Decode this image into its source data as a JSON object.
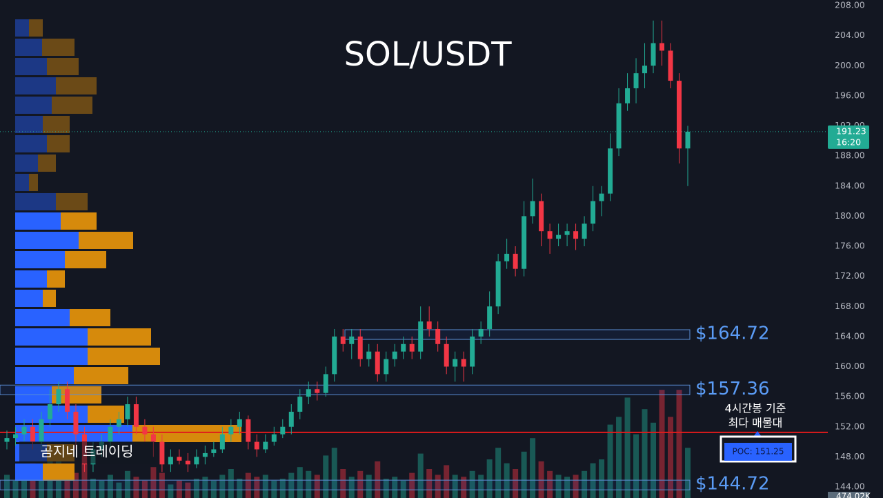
{
  "chart_data": {
    "type": "candlestick",
    "title": "SOL/USDT",
    "ylim": [
      144,
      208
    ],
    "yticks": [
      {
        "value": 144,
        "label": "144.00"
      },
      {
        "value": 148,
        "label": "148.00"
      },
      {
        "value": 152,
        "label": "152.00"
      },
      {
        "value": 156,
        "label": "156.00"
      },
      {
        "value": 160,
        "label": "160.00"
      },
      {
        "value": 164,
        "label": "164.00"
      },
      {
        "value": 168,
        "label": "168.00"
      },
      {
        "value": 172,
        "label": "172.00"
      },
      {
        "value": 176,
        "label": "176.00"
      },
      {
        "value": 180,
        "label": "180.00"
      },
      {
        "value": 184,
        "label": "184.00"
      },
      {
        "value": 188,
        "label": "188.00"
      },
      {
        "value": 192,
        "label": "192.00"
      },
      {
        "value": 196,
        "label": "196.00"
      },
      {
        "value": 200,
        "label": "200.00"
      },
      {
        "value": 204,
        "label": "204.00"
      },
      {
        "value": 208,
        "label": "208.00"
      }
    ],
    "grid": true,
    "up_color": "#22ab94",
    "down_color": "#f23645",
    "open": [
      150,
      150.5,
      151,
      152,
      150,
      153,
      155,
      157,
      154,
      151,
      147,
      149,
      150,
      152,
      153,
      155,
      152,
      151,
      150,
      147,
      148,
      147.5,
      147,
      148,
      148.5,
      149,
      151,
      152,
      153,
      150,
      149,
      150,
      151,
      152,
      154,
      156,
      157,
      156.5,
      159,
      164,
      163,
      164,
      161,
      162,
      159,
      161,
      162,
      163,
      162,
      166,
      165,
      163,
      160,
      161,
      160,
      164,
      165,
      168,
      174,
      175,
      173,
      180,
      182,
      178,
      177,
      177.5,
      178,
      177,
      179,
      182,
      183,
      189,
      195,
      197,
      199,
      200,
      203,
      202,
      198,
      189
    ],
    "high": [
      151.5,
      152,
      153,
      153,
      154,
      157,
      158,
      158,
      155,
      152,
      150,
      151,
      153,
      154,
      156,
      156,
      153,
      152,
      151,
      149,
      149,
      148.5,
      149,
      149.5,
      150,
      152,
      153,
      154,
      153.5,
      151,
      151,
      152,
      153,
      155,
      157,
      158,
      158,
      160,
      165,
      165,
      165,
      165,
      163,
      163,
      162,
      163,
      164,
      164,
      168,
      168,
      166,
      164,
      162,
      162,
      165,
      166,
      170,
      175,
      177,
      176,
      182,
      185,
      183,
      179,
      179,
      179,
      179,
      180,
      184,
      184,
      191,
      197,
      199,
      201,
      203,
      206,
      206,
      203,
      199,
      192
    ],
    "low": [
      149,
      149.5,
      150,
      149,
      149,
      152,
      154,
      153,
      149,
      146,
      146,
      148,
      149,
      151,
      152,
      151,
      150,
      148,
      146,
      146,
      147,
      146,
      146.5,
      147,
      148,
      148.5,
      150,
      151,
      149,
      148,
      148.5,
      149.5,
      150.5,
      151,
      153,
      155,
      155.5,
      156,
      158,
      162,
      161,
      160,
      160,
      158,
      158,
      160,
      161,
      161,
      161,
      164,
      162,
      159,
      158,
      158,
      159,
      163,
      164,
      167,
      173,
      172,
      172,
      179,
      176,
      175,
      176,
      176,
      175.5,
      176,
      178,
      180,
      182,
      188,
      194,
      195,
      197,
      199,
      200,
      197,
      187,
      184
    ],
    "close": [
      150.5,
      151,
      152,
      150,
      153,
      155,
      157,
      154,
      151,
      147,
      149,
      150,
      152,
      153,
      155,
      152,
      151,
      150,
      147,
      148,
      147.5,
      147,
      148,
      148.5,
      149,
      151,
      152,
      153,
      150,
      149,
      150,
      151,
      152,
      154,
      156,
      157,
      156.5,
      159,
      164,
      163,
      164,
      161,
      162,
      159,
      161,
      162,
      163,
      162,
      166,
      165,
      163,
      160,
      161,
      160,
      164,
      165,
      168,
      174,
      175,
      173,
      180,
      182,
      178,
      177,
      177.5,
      178,
      177,
      179,
      182,
      183,
      189,
      195,
      197,
      199,
      200,
      203,
      202,
      198,
      189,
      191.23
    ],
    "volume": [
      120,
      90,
      150,
      180,
      110,
      200,
      240,
      160,
      130,
      210,
      100,
      90,
      120,
      80,
      140,
      110,
      90,
      160,
      130,
      70,
      90,
      80,
      100,
      110,
      90,
      120,
      150,
      100,
      130,
      110,
      120,
      90,
      100,
      130,
      160,
      140,
      120,
      220,
      260,
      150,
      110,
      140,
      120,
      190,
      100,
      110,
      90,
      130,
      230,
      150,
      120,
      170,
      120,
      110,
      140,
      120,
      200,
      260,
      180,
      150,
      240,
      310,
      190,
      140,
      120,
      110,
      120,
      140,
      180,
      200,
      380,
      420,
      520,
      330,
      460,
      390,
      560,
      420,
      560,
      260
    ],
    "volume_label": "474.02K",
    "last_price": {
      "value": 191.23,
      "label": "191.23"
    },
    "countdown": "16:20",
    "levels": [
      {
        "value": 164.72,
        "label": "$164.72"
      },
      {
        "value": 157.36,
        "label": "$157.36"
      },
      {
        "value": 144.72,
        "label": "$144.72"
      }
    ],
    "poc": {
      "value": 151.25,
      "label": "POC: 151.25"
    },
    "annotation": [
      "4시간봉 기준",
      "최다 매물대"
    ],
    "watermark": "곰지네 트레이딩",
    "volume_profile": {
      "buy": [
        20,
        39,
        46,
        59,
        53,
        40,
        46,
        33,
        20,
        59,
        66,
        92,
        72,
        46,
        40,
        79,
        105,
        105,
        85,
        53,
        105,
        170,
        46,
        40
      ],
      "sell": [
        20,
        47,
        46,
        59,
        59,
        39,
        33,
        26,
        13,
        46,
        52,
        79,
        60,
        26,
        19,
        59,
        92,
        105,
        79,
        72,
        53,
        158,
        40,
        46
      ]
    }
  }
}
